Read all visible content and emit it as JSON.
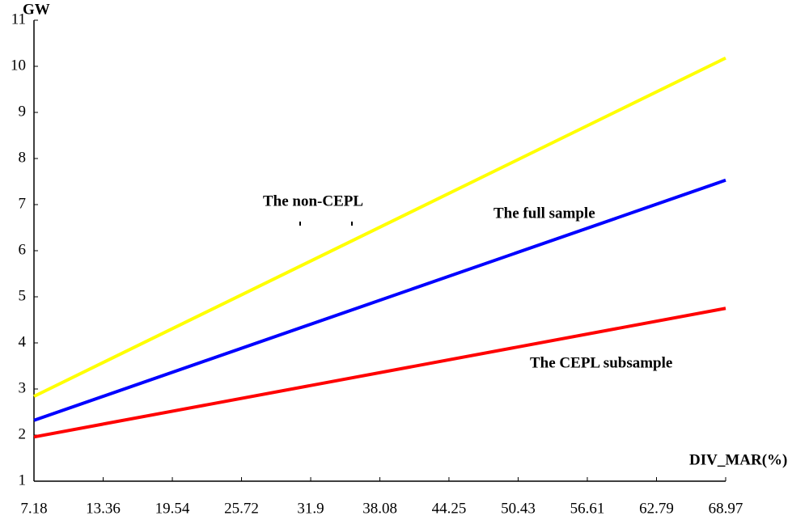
{
  "chart_data": {
    "type": "line",
    "y_label": "GW",
    "x_label": "DIV_MAR(%)",
    "x": [
      7.18,
      68.97
    ],
    "series": [
      {
        "name": "The non-CEPL",
        "color": "#ffff00",
        "values": [
          2.84,
          10.18
        ]
      },
      {
        "name": "The full sample",
        "color": "#0000ff",
        "values": [
          2.32,
          7.53
        ]
      },
      {
        "name": "The CEPL subsample",
        "color": "#ff0000",
        "values": [
          1.96,
          4.75
        ]
      }
    ],
    "xlim": [
      7.18,
      68.97
    ],
    "xticks": [
      7.18,
      13.36,
      19.54,
      25.72,
      31.9,
      38.08,
      44.25,
      50.43,
      56.61,
      62.79,
      68.97
    ],
    "ylim": [
      1,
      11
    ],
    "yticks": [
      1,
      2,
      3,
      4,
      5,
      6,
      7,
      8,
      9,
      10,
      11
    ]
  }
}
